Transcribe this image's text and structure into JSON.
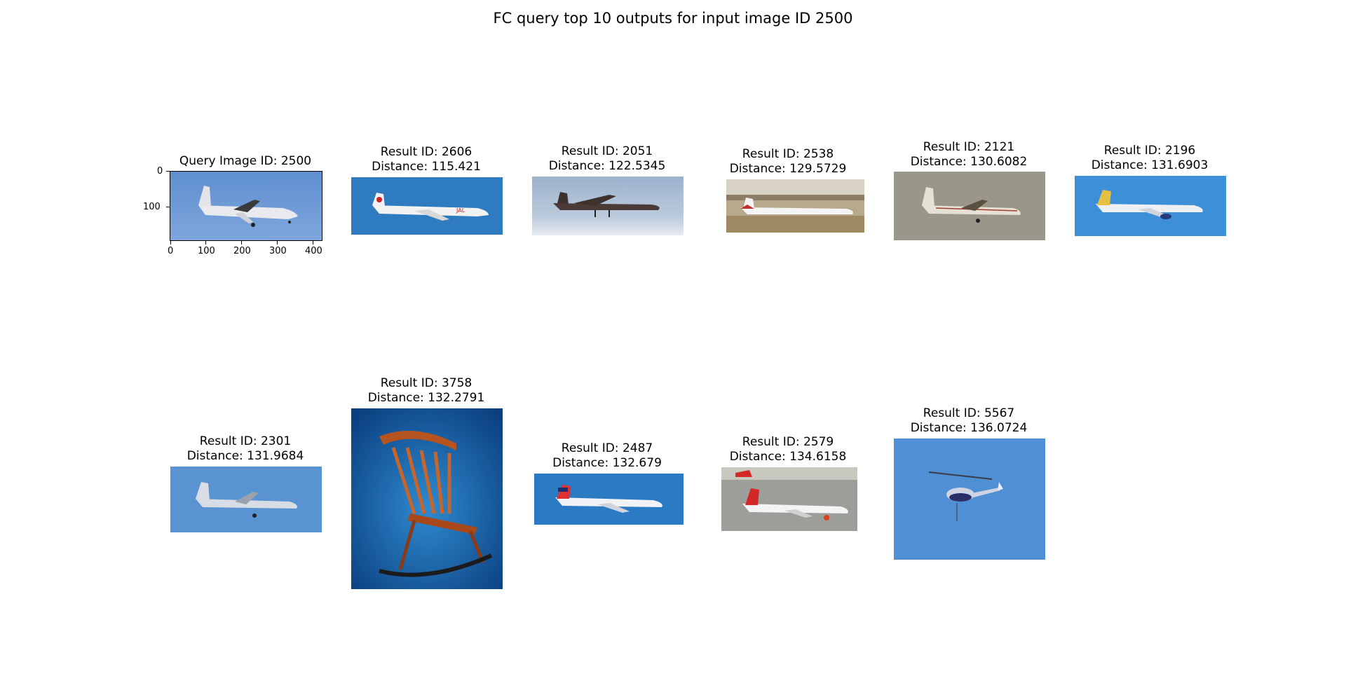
{
  "figure": {
    "title": "FC query top 10 outputs for input image ID 2500"
  },
  "query": {
    "title": "Query Image ID: 2500",
    "y_ticks": [
      "0",
      "100"
    ],
    "x_ticks": [
      "0",
      "100",
      "200",
      "300",
      "400"
    ]
  },
  "results": [
    {
      "id_label": "Result ID: 2606",
      "distance_label": "Distance: 115.421"
    },
    {
      "id_label": "Result ID: 2051",
      "distance_label": "Distance: 122.5345"
    },
    {
      "id_label": "Result ID: 2538",
      "distance_label": "Distance: 129.5729"
    },
    {
      "id_label": "Result ID: 2121",
      "distance_label": "Distance: 130.6082"
    },
    {
      "id_label": "Result ID: 2196",
      "distance_label": "Distance: 131.6903"
    },
    {
      "id_label": "Result ID: 2301",
      "distance_label": "Distance: 131.9684"
    },
    {
      "id_label": "Result ID: 3758",
      "distance_label": "Distance: 132.2791"
    },
    {
      "id_label": "Result ID: 2487",
      "distance_label": "Distance: 132.679"
    },
    {
      "id_label": "Result ID: 2579",
      "distance_label": "Distance: 134.6158"
    },
    {
      "id_label": "Result ID: 5567",
      "distance_label": "Distance: 136.0724"
    }
  ]
}
